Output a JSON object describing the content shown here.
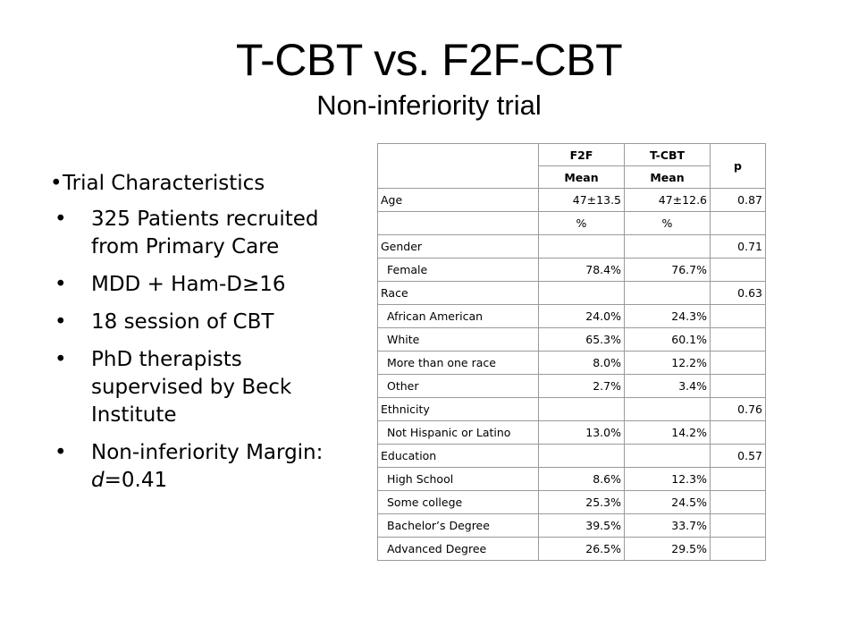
{
  "title": "T-CBT vs. F2F-CBT",
  "subtitle": "Non-inferiority trial",
  "bullets": {
    "heading": "Trial Characteristics",
    "items": [
      "325 Patients recruited from Primary Care",
      "MDD + Ham-D≥16",
      "18 session of CBT",
      "PhD therapists supervised by Beck Institute"
    ],
    "margin_prefix": "Non-inferiority Margin: ",
    "margin_var": "d",
    "margin_value": "=0.41"
  },
  "table": {
    "headers": {
      "f2f": "F2F",
      "tcbt": "T-CBT",
      "p": "p",
      "mean_f2f": "Mean",
      "mean_tcbt": "Mean"
    },
    "rows": [
      {
        "label": "Age",
        "indent": false,
        "f2f": "47±13.5",
        "tcbt": "47±12.6",
        "p": "0.87"
      },
      {
        "label": "",
        "indent": false,
        "f2f": "%",
        "tcbt": "%",
        "p": "",
        "unit_row": true
      },
      {
        "label": "Gender",
        "indent": false,
        "f2f": "",
        "tcbt": "",
        "p": "0.71"
      },
      {
        "label": "Female",
        "indent": true,
        "f2f": "78.4%",
        "tcbt": "76.7%",
        "p": ""
      },
      {
        "label": "Race",
        "indent": false,
        "f2f": "",
        "tcbt": "",
        "p": "0.63"
      },
      {
        "label": "African American",
        "indent": true,
        "f2f": "24.0%",
        "tcbt": "24.3%",
        "p": ""
      },
      {
        "label": "White",
        "indent": true,
        "f2f": "65.3%",
        "tcbt": "60.1%",
        "p": ""
      },
      {
        "label": "More than one race",
        "indent": true,
        "f2f": "8.0%",
        "tcbt": "12.2%",
        "p": ""
      },
      {
        "label": "Other",
        "indent": true,
        "f2f": "2.7%",
        "tcbt": "3.4%",
        "p": ""
      },
      {
        "label": "Ethnicity",
        "indent": false,
        "f2f": "",
        "tcbt": "",
        "p": "0.76"
      },
      {
        "label": "Not Hispanic or Latino",
        "indent": true,
        "f2f": "13.0%",
        "tcbt": "14.2%",
        "p": ""
      },
      {
        "label": "Education",
        "indent": false,
        "f2f": "",
        "tcbt": "",
        "p": "0.57"
      },
      {
        "label": "High School",
        "indent": true,
        "f2f": "8.6%",
        "tcbt": "12.3%",
        "p": ""
      },
      {
        "label": "Some college",
        "indent": true,
        "f2f": "25.3%",
        "tcbt": "24.5%",
        "p": ""
      },
      {
        "label": "Bachelor’s Degree",
        "indent": true,
        "f2f": "39.5%",
        "tcbt": "33.7%",
        "p": ""
      },
      {
        "label": "Advanced Degree",
        "indent": true,
        "f2f": "26.5%",
        "tcbt": "29.5%",
        "p": ""
      }
    ]
  }
}
